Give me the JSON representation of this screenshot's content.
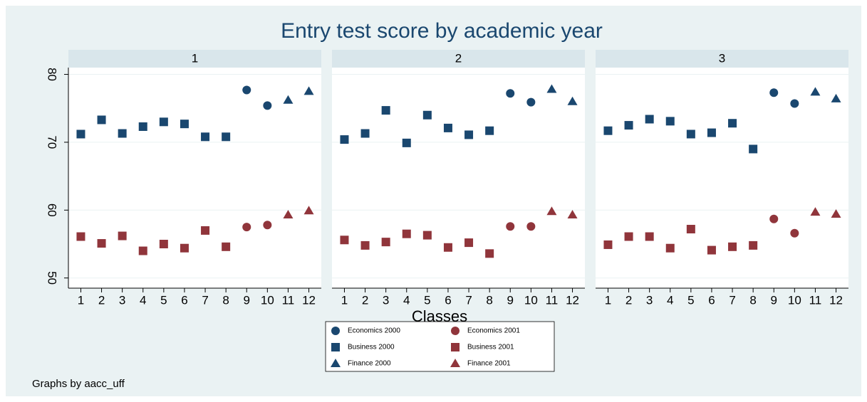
{
  "title": "Entry test score by academic year",
  "xlabel": "Classes",
  "note": "Graphs by aacc_uff",
  "chart_data": [
    {
      "type": "scatter",
      "title": "1",
      "xlim": [
        0.4,
        12.6
      ],
      "xticks": [
        1,
        2,
        3,
        4,
        5,
        6,
        7,
        8,
        9,
        10,
        11,
        12
      ],
      "ylim": [
        48.5,
        81
      ],
      "yticks": [
        50,
        60,
        70,
        80
      ],
      "grid": true,
      "series": [
        {
          "name": "Economics 2000",
          "color": "#1a476f",
          "symbol": "circle",
          "x": [
            9,
            10
          ],
          "values": [
            77.7,
            75.4
          ]
        },
        {
          "name": "Business 2000",
          "color": "#1a476f",
          "symbol": "square",
          "x": [
            1,
            2,
            3,
            4,
            5,
            6,
            7,
            8
          ],
          "values": [
            71.2,
            73.3,
            71.3,
            72.3,
            73.0,
            72.7,
            70.8,
            70.8
          ]
        },
        {
          "name": "Finance 2000",
          "color": "#1a476f",
          "symbol": "triangle",
          "x": [
            11,
            12
          ],
          "values": [
            76.2,
            77.5
          ]
        },
        {
          "name": "Economics 2001",
          "color": "#90353b",
          "symbol": "circle",
          "x": [
            9,
            10
          ],
          "values": [
            57.5,
            57.8
          ]
        },
        {
          "name": "Business 2001",
          "color": "#90353b",
          "symbol": "square",
          "x": [
            1,
            2,
            3,
            4,
            5,
            6,
            7,
            8
          ],
          "values": [
            56.1,
            55.1,
            56.2,
            54.0,
            55.0,
            54.4,
            57.0,
            54.6
          ]
        },
        {
          "name": "Finance 2001",
          "color": "#90353b",
          "symbol": "triangle",
          "x": [
            11,
            12
          ],
          "values": [
            59.3,
            59.9
          ]
        }
      ]
    },
    {
      "type": "scatter",
      "title": "2",
      "xlim": [
        0.4,
        12.6
      ],
      "xticks": [
        1,
        2,
        3,
        4,
        5,
        6,
        7,
        8,
        9,
        10,
        11,
        12
      ],
      "ylim": [
        48.5,
        81
      ],
      "yticks": [
        50,
        60,
        70,
        80
      ],
      "grid": true,
      "series": [
        {
          "name": "Economics 2000",
          "color": "#1a476f",
          "symbol": "circle",
          "x": [
            9,
            10
          ],
          "values": [
            77.2,
            75.9
          ]
        },
        {
          "name": "Business 2000",
          "color": "#1a476f",
          "symbol": "square",
          "x": [
            1,
            2,
            3,
            4,
            5,
            6,
            7,
            8
          ],
          "values": [
            70.4,
            71.3,
            74.7,
            69.9,
            74.0,
            72.1,
            71.1,
            71.7
          ]
        },
        {
          "name": "Finance 2000",
          "color": "#1a476f",
          "symbol": "triangle",
          "x": [
            11,
            12
          ],
          "values": [
            77.8,
            76.0
          ]
        },
        {
          "name": "Economics 2001",
          "color": "#90353b",
          "symbol": "circle",
          "x": [
            9,
            10
          ],
          "values": [
            57.6,
            57.6
          ]
        },
        {
          "name": "Business 2001",
          "color": "#90353b",
          "symbol": "square",
          "x": [
            1,
            2,
            3,
            4,
            5,
            6,
            7,
            8
          ],
          "values": [
            55.6,
            54.8,
            55.3,
            56.5,
            56.3,
            54.5,
            55.2,
            53.6
          ]
        },
        {
          "name": "Finance 2001",
          "color": "#90353b",
          "symbol": "triangle",
          "x": [
            11,
            12
          ],
          "values": [
            59.8,
            59.3
          ]
        }
      ]
    },
    {
      "type": "scatter",
      "title": "3",
      "xlim": [
        0.4,
        12.6
      ],
      "xticks": [
        1,
        2,
        3,
        4,
        5,
        6,
        7,
        8,
        9,
        10,
        11,
        12
      ],
      "ylim": [
        48.5,
        81
      ],
      "yticks": [
        50,
        60,
        70,
        80
      ],
      "grid": true,
      "series": [
        {
          "name": "Economics 2000",
          "color": "#1a476f",
          "symbol": "circle",
          "x": [
            9,
            10
          ],
          "values": [
            77.3,
            75.7
          ]
        },
        {
          "name": "Business 2000",
          "color": "#1a476f",
          "symbol": "square",
          "x": [
            1,
            2,
            3,
            4,
            5,
            6,
            7,
            8
          ],
          "values": [
            71.7,
            72.5,
            73.4,
            73.1,
            71.2,
            71.4,
            72.8,
            69.0
          ]
        },
        {
          "name": "Finance 2000",
          "color": "#1a476f",
          "symbol": "triangle",
          "x": [
            11,
            12
          ],
          "values": [
            77.4,
            76.4
          ]
        },
        {
          "name": "Economics 2001",
          "color": "#90353b",
          "symbol": "circle",
          "x": [
            9,
            10
          ],
          "values": [
            58.7,
            56.6
          ]
        },
        {
          "name": "Business 2001",
          "color": "#90353b",
          "symbol": "square",
          "x": [
            1,
            2,
            3,
            4,
            5,
            6,
            7,
            8
          ],
          "values": [
            54.9,
            56.1,
            56.1,
            54.4,
            57.2,
            54.1,
            54.6,
            54.8
          ]
        },
        {
          "name": "Finance 2001",
          "color": "#90353b",
          "symbol": "triangle",
          "x": [
            11,
            12
          ],
          "values": [
            59.7,
            59.4
          ]
        }
      ]
    }
  ]
}
